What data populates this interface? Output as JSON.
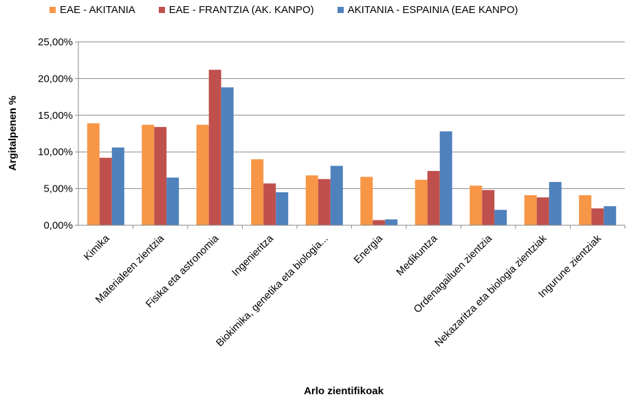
{
  "chart_data": {
    "type": "bar",
    "categories": [
      "Kimika",
      "Materialeen zientzia",
      "Fisika eta astronomia",
      "Ingenieritza",
      "Biokimika, genetika eta biologia...",
      "Energia",
      "Medikuntza",
      "Ordenagailuen zientzia",
      "Nekazaritza eta biologia zientziak",
      "Ingurune zientziak"
    ],
    "series": [
      {
        "name": "EAE - AKITANIA",
        "color": "#F79646",
        "values": [
          13.9,
          13.7,
          13.7,
          9.0,
          6.8,
          6.6,
          6.2,
          5.4,
          4.1,
          4.1
        ]
      },
      {
        "name": "EAE - FRANTZIA (AK. KANPO)",
        "color": "#C0504D",
        "values": [
          9.2,
          13.4,
          21.2,
          5.7,
          6.3,
          0.7,
          7.4,
          4.8,
          3.8,
          2.3
        ]
      },
      {
        "name": "AKITANIA - ESPAINIA (EAE KANPO)",
        "color": "#4F81BD",
        "values": [
          10.6,
          6.5,
          18.8,
          4.5,
          8.1,
          0.8,
          12.8,
          2.1,
          5.9,
          2.6
        ]
      }
    ],
    "yticks": [
      "0,00%",
      "5,00%",
      "10,00%",
      "15,00%",
      "20,00%",
      "25,00%"
    ],
    "ylim": [
      0,
      25
    ],
    "ylabel": "Argitalpenen %",
    "xlabel": "Arlo zientifikoak",
    "grid": true,
    "legend_position": "top"
  }
}
